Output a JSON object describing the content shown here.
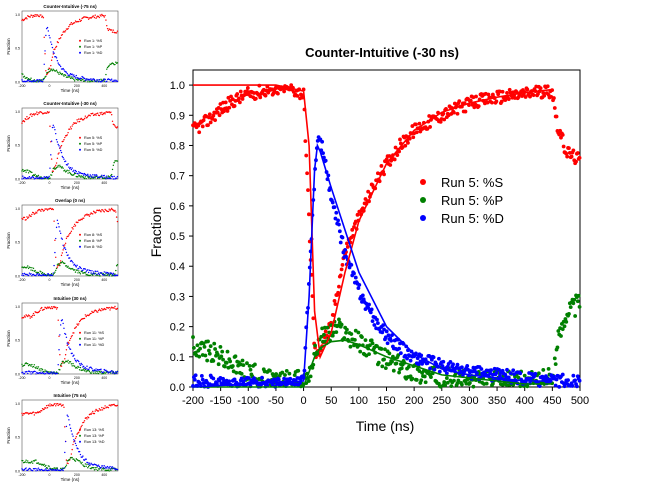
{
  "main_chart": {
    "title": "Counter-Intuitive (-30 ns)",
    "xlabel": "Time (ns)",
    "ylabel": "Fraction",
    "xticks": [
      "-200",
      "-150",
      "-100",
      "-50",
      "0",
      "50",
      "100",
      "150",
      "200",
      "250",
      "300",
      "350",
      "400",
      "450",
      "500"
    ],
    "yticks": [
      "0.0",
      "0.1",
      "0.2",
      "0.3",
      "0.4",
      "0.5",
      "0.6",
      "0.7",
      "0.8",
      "0.9",
      "1.0"
    ],
    "legend": [
      {
        "label": "Run 5: %S",
        "color": "#ff0000"
      },
      {
        "label": "Run 5: %P",
        "color": "#008000"
      },
      {
        "label": "Run 5: %D",
        "color": "#0000ff"
      }
    ]
  },
  "thumbnails": [
    {
      "title": "Counter-Intuitive (-75 ns)",
      "legend": [
        "Run 1: %S",
        "Run 1: %P",
        "Run 1: %D"
      ],
      "xlabel": "Time (ns)",
      "ylabel": "Fraction"
    },
    {
      "title": "Counter-Intuitive (-30 ns)",
      "legend": [
        "Run 5: %S",
        "Run 5: %P",
        "Run 5: %D"
      ],
      "xlabel": "Time (ns)",
      "ylabel": "Fraction"
    },
    {
      "title": "Overlap (0 ns)",
      "legend": [
        "Run 8: %S",
        "Run 8: %P",
        "Run 8: %D"
      ],
      "xlabel": "Time (ns)",
      "ylabel": "Fraction"
    },
    {
      "title": "Intuitive (30 ns)",
      "legend": [
        "Run 11: %S",
        "Run 11: %P",
        "Run 11: %D"
      ],
      "xlabel": "Time (ns)",
      "ylabel": "Fraction"
    },
    {
      "title": "Intuitive (75 ns)",
      "legend": [
        "Run 13: %S",
        "Run 13: %P",
        "Run 13: %D"
      ],
      "xlabel": "Time (ns)",
      "ylabel": "Fraction"
    }
  ],
  "chart_data": {
    "type": "scatter",
    "title": "Counter-Intuitive (-30 ns)",
    "xlabel": "Time (ns)",
    "ylabel": "Fraction",
    "xlim": [
      -200,
      500
    ],
    "ylim": [
      0,
      1.05
    ],
    "grid": false,
    "legend_position": "right-middle",
    "colors": {
      "S": "#ff0000",
      "P": "#008000",
      "D": "#0000ff"
    },
    "x": [
      -200,
      -175,
      -150,
      -125,
      -100,
      -75,
      -50,
      -25,
      0,
      10,
      20,
      25,
      30,
      40,
      50,
      60,
      75,
      100,
      125,
      150,
      175,
      200,
      250,
      300,
      350,
      400,
      425,
      450,
      460,
      475,
      500
    ],
    "series": [
      {
        "name": "Run 5: %S",
        "values": [
          0.85,
          0.88,
          0.92,
          0.95,
          0.97,
          0.98,
          0.99,
          0.99,
          0.97,
          0.55,
          0.12,
          0.1,
          0.13,
          0.17,
          0.2,
          0.31,
          0.45,
          0.56,
          0.66,
          0.74,
          0.8,
          0.85,
          0.9,
          0.94,
          0.96,
          0.97,
          0.98,
          0.98,
          0.86,
          0.78,
          0.75
        ]
      },
      {
        "name": "Run 5: %P",
        "values": [
          0.14,
          0.12,
          0.1,
          0.07,
          0.05,
          0.03,
          0.02,
          0.02,
          0.02,
          0.05,
          0.1,
          0.14,
          0.16,
          0.17,
          0.18,
          0.2,
          0.18,
          0.15,
          0.12,
          0.09,
          0.07,
          0.05,
          0.03,
          0.02,
          0.02,
          0.02,
          0.02,
          0.03,
          0.15,
          0.25,
          0.28
        ]
      },
      {
        "name": "Run 5: %D",
        "values": [
          0.02,
          0.02,
          0.01,
          0.01,
          0.01,
          0.01,
          0.01,
          0.01,
          0.02,
          0.35,
          0.7,
          0.8,
          0.82,
          0.74,
          0.62,
          0.55,
          0.44,
          0.32,
          0.23,
          0.17,
          0.13,
          0.1,
          0.07,
          0.05,
          0.04,
          0.03,
          0.02,
          0.02,
          0.02,
          0.02,
          0.02
        ]
      }
    ],
    "fits": [
      {
        "name": "%S fit",
        "x": [
          -200,
          -50,
          0,
          10,
          20,
          30,
          50,
          75,
          100,
          150,
          200,
          250,
          300,
          350,
          400,
          450
        ],
        "values": [
          1.0,
          1.0,
          0.98,
          0.8,
          0.25,
          0.1,
          0.18,
          0.38,
          0.55,
          0.74,
          0.85,
          0.91,
          0.94,
          0.96,
          0.975,
          0.985
        ]
      },
      {
        "name": "%P fit",
        "x": [
          -200,
          0,
          10,
          20,
          30,
          50,
          75,
          100,
          150,
          200,
          250,
          300,
          350,
          400,
          450
        ],
        "values": [
          0.0,
          0.0,
          0.05,
          0.1,
          0.13,
          0.15,
          0.155,
          0.14,
          0.1,
          0.07,
          0.04,
          0.03,
          0.02,
          0.01,
          0.01
        ]
      },
      {
        "name": "%D fit",
        "x": [
          -200,
          0,
          10,
          20,
          25,
          30,
          40,
          50,
          75,
          100,
          150,
          200,
          250,
          300,
          350,
          400,
          450
        ],
        "values": [
          0.0,
          0.02,
          0.3,
          0.72,
          0.8,
          0.78,
          0.72,
          0.66,
          0.52,
          0.38,
          0.2,
          0.11,
          0.06,
          0.04,
          0.03,
          0.02,
          0.02
        ]
      }
    ]
  }
}
